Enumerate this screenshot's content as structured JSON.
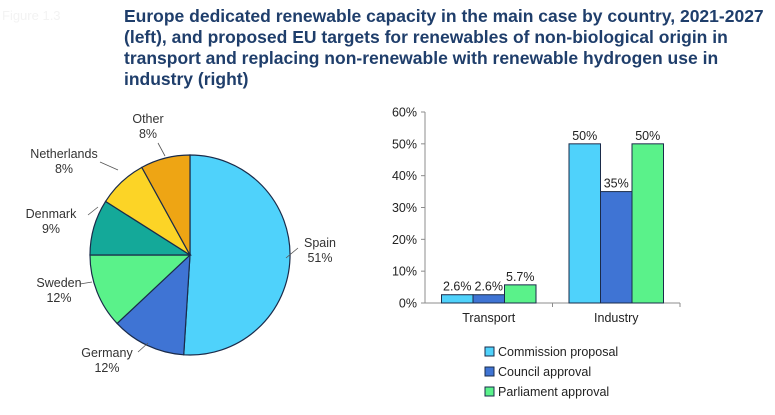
{
  "figure_label": "Figure 1.3",
  "title": "Europe dedicated renewable capacity in the main case by country, 2021-2027 (left), and proposed EU targets for renewables of non-biological origin in transport and replacing non-renewable with renewable hydrogen use in industry (right)",
  "colors": {
    "spain": "#4fd2fb",
    "germany": "#3f74d4",
    "sweden": "#5af28a",
    "denmark": "#14a999",
    "netherlands": "#fcd426",
    "other": "#eea514",
    "commission": "#4fd2fb",
    "council": "#3f74d4",
    "parliament": "#5af28a"
  },
  "chart_data": [
    {
      "type": "pie",
      "slices": [
        {
          "label": "Spain",
          "value": 51,
          "value_label": "51%",
          "color": "#4fd2fb"
        },
        {
          "label": "Germany",
          "value": 12,
          "value_label": "12%",
          "color": "#3f74d4"
        },
        {
          "label": "Sweden",
          "value": 12,
          "value_label": "12%",
          "color": "#5af28a"
        },
        {
          "label": "Denmark",
          "value": 9,
          "value_label": "9%",
          "color": "#14a999"
        },
        {
          "label": "Netherlands",
          "value": 8,
          "value_label": "8%",
          "color": "#fcd426"
        },
        {
          "label": "Other",
          "value": 8,
          "value_label": "8%",
          "color": "#eea514"
        }
      ]
    },
    {
      "type": "bar",
      "categories": [
        "Transport",
        "Industry"
      ],
      "series": [
        {
          "name": "Commission proposal",
          "values": [
            2.6,
            50
          ],
          "labels": [
            "2.6%",
            "50%"
          ],
          "color": "#4fd2fb"
        },
        {
          "name": "Council approval",
          "values": [
            2.6,
            35
          ],
          "labels": [
            "2.6%",
            "35%"
          ],
          "color": "#3f74d4"
        },
        {
          "name": "Parliament approval",
          "values": [
            5.7,
            50
          ],
          "labels": [
            "5.7%",
            "50%"
          ],
          "color": "#5af28a"
        }
      ],
      "ylim": [
        0,
        60
      ],
      "yticks": [
        "0%",
        "10%",
        "20%",
        "30%",
        "40%",
        "50%",
        "60%"
      ],
      "grid": false,
      "legend_position": "bottom"
    }
  ]
}
